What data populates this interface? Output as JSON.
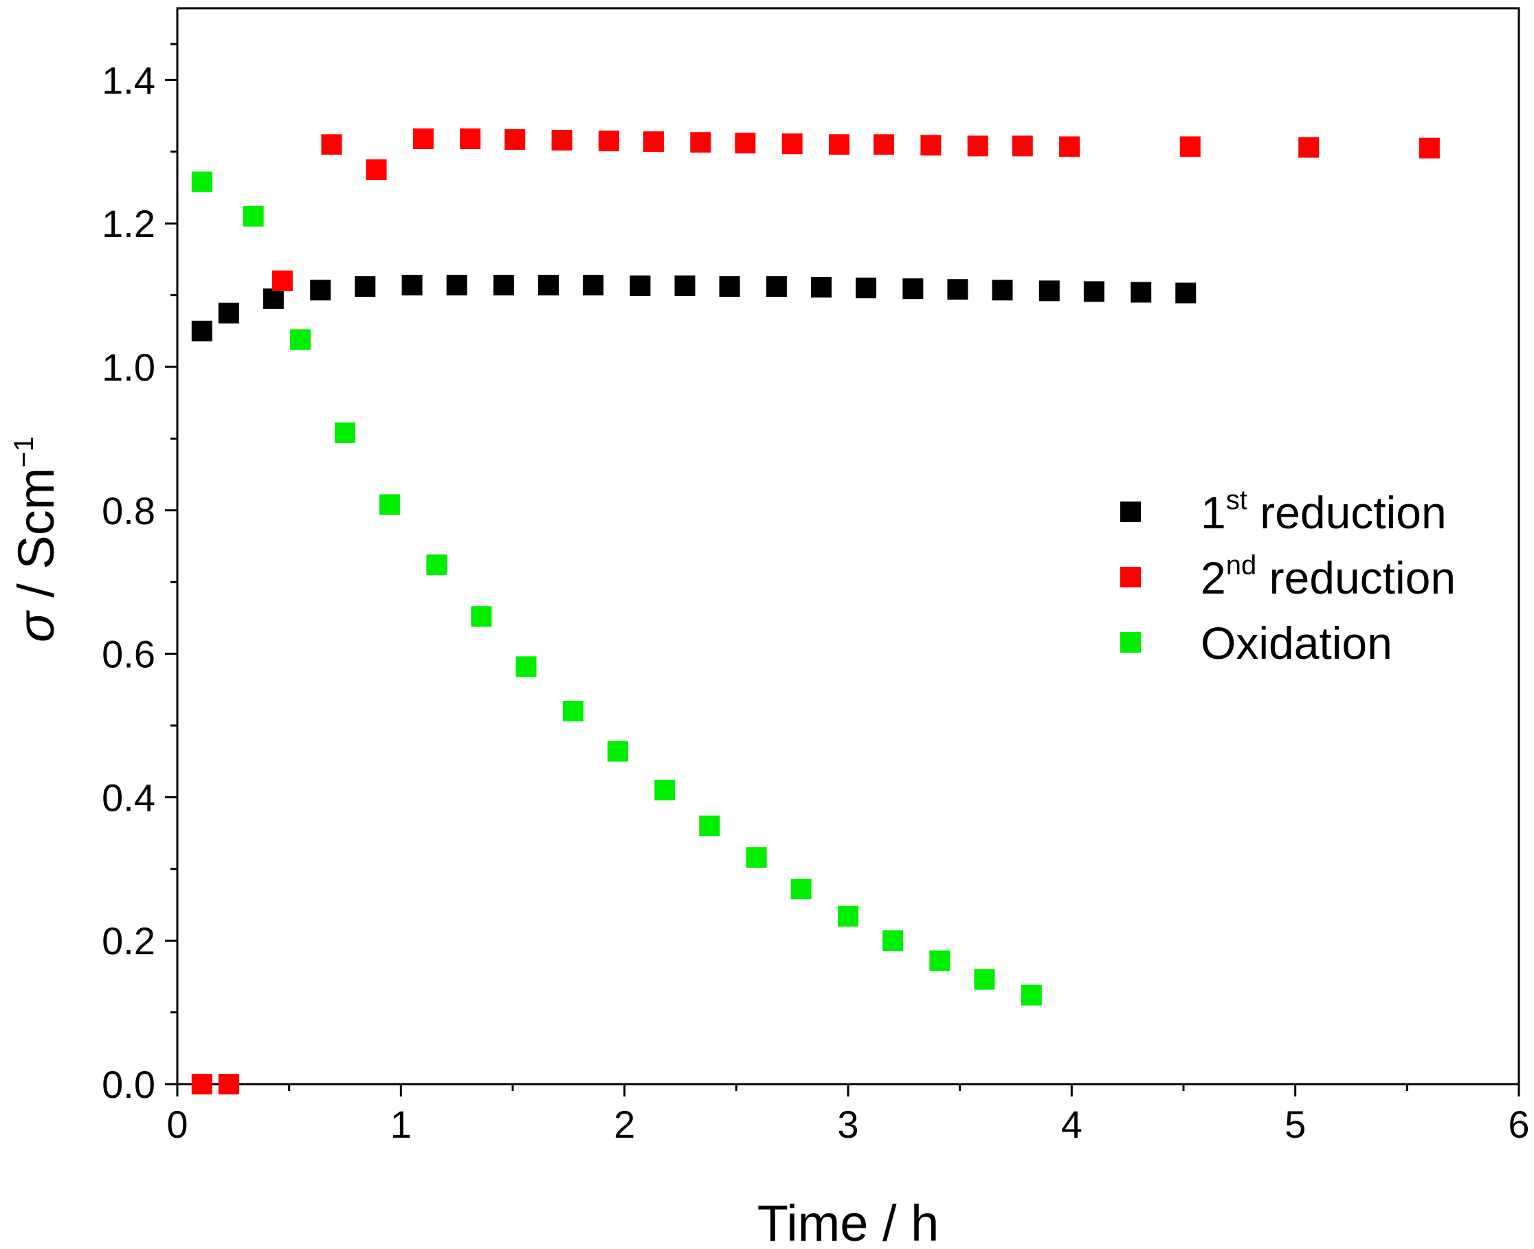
{
  "chart_data": {
    "type": "scatter",
    "title": "",
    "xlabel": "Time / h",
    "ylabel": {
      "symbol": "σ",
      "text": " / Scm",
      "exponent": "−1"
    },
    "xlim": [
      0,
      6
    ],
    "ylim": [
      0,
      1.5
    ],
    "xticks": [
      0,
      1,
      2,
      3,
      4,
      5,
      6
    ],
    "xtick_labels": [
      "0",
      "1",
      "2",
      "3",
      "4",
      "5",
      "6"
    ],
    "yticks": [
      0,
      0.2,
      0.4,
      0.6,
      0.8,
      1.0,
      1.2,
      1.4
    ],
    "ytick_labels": [
      "0.0",
      "0.2",
      "0.4",
      "0.6",
      "0.8",
      "1.0",
      "1.2",
      "1.4"
    ],
    "grid": false,
    "legend_position": "right-center",
    "series": [
      {
        "name": "1st reduction",
        "legend_base": "1",
        "legend_sup": "st",
        "legend_rest": " reduction",
        "color": "#000000",
        "marker": "square",
        "x": [
          0.11,
          0.23,
          0.43,
          0.64,
          0.84,
          1.05,
          1.25,
          1.46,
          1.66,
          1.86,
          2.07,
          2.27,
          2.47,
          2.68,
          2.88,
          3.08,
          3.29,
          3.49,
          3.69,
          3.9,
          4.1,
          4.31,
          4.51
        ],
        "y": [
          1.05,
          1.075,
          1.095,
          1.107,
          1.112,
          1.114,
          1.114,
          1.114,
          1.114,
          1.114,
          1.113,
          1.113,
          1.112,
          1.112,
          1.111,
          1.11,
          1.109,
          1.108,
          1.107,
          1.106,
          1.105,
          1.104,
          1.103
        ]
      },
      {
        "name": "2nd reduction",
        "legend_base": "2",
        "legend_sup": "nd",
        "legend_rest": " reduction",
        "color": "#ff0000",
        "marker": "square",
        "x": [
          0.11,
          0.23,
          0.47,
          0.69,
          0.89,
          1.1,
          1.31,
          1.51,
          1.72,
          1.93,
          2.13,
          2.34,
          2.54,
          2.75,
          2.96,
          3.16,
          3.37,
          3.58,
          3.78,
          3.99,
          4.53,
          5.06,
          5.6
        ],
        "y": [
          0.0,
          0.0,
          1.12,
          1.31,
          1.275,
          1.318,
          1.318,
          1.317,
          1.316,
          1.315,
          1.314,
          1.313,
          1.312,
          1.311,
          1.31,
          1.31,
          1.309,
          1.308,
          1.308,
          1.307,
          1.307,
          1.306,
          1.305
        ]
      },
      {
        "name": "Oxidation",
        "legend_base": "Oxidation",
        "legend_sup": "",
        "legend_rest": "",
        "color": "#00ee00",
        "marker": "square",
        "x": [
          0.11,
          0.34,
          0.55,
          0.75,
          0.95,
          1.16,
          1.36,
          1.56,
          1.77,
          1.97,
          2.18,
          2.38,
          2.59,
          2.79,
          3.0,
          3.2,
          3.41,
          3.61,
          3.82
        ],
        "y": [
          1.258,
          1.21,
          1.038,
          0.908,
          0.808,
          0.724,
          0.652,
          0.582,
          0.52,
          0.464,
          0.41,
          0.36,
          0.316,
          0.272,
          0.234,
          0.2,
          0.172,
          0.146,
          0.124
        ]
      }
    ]
  }
}
